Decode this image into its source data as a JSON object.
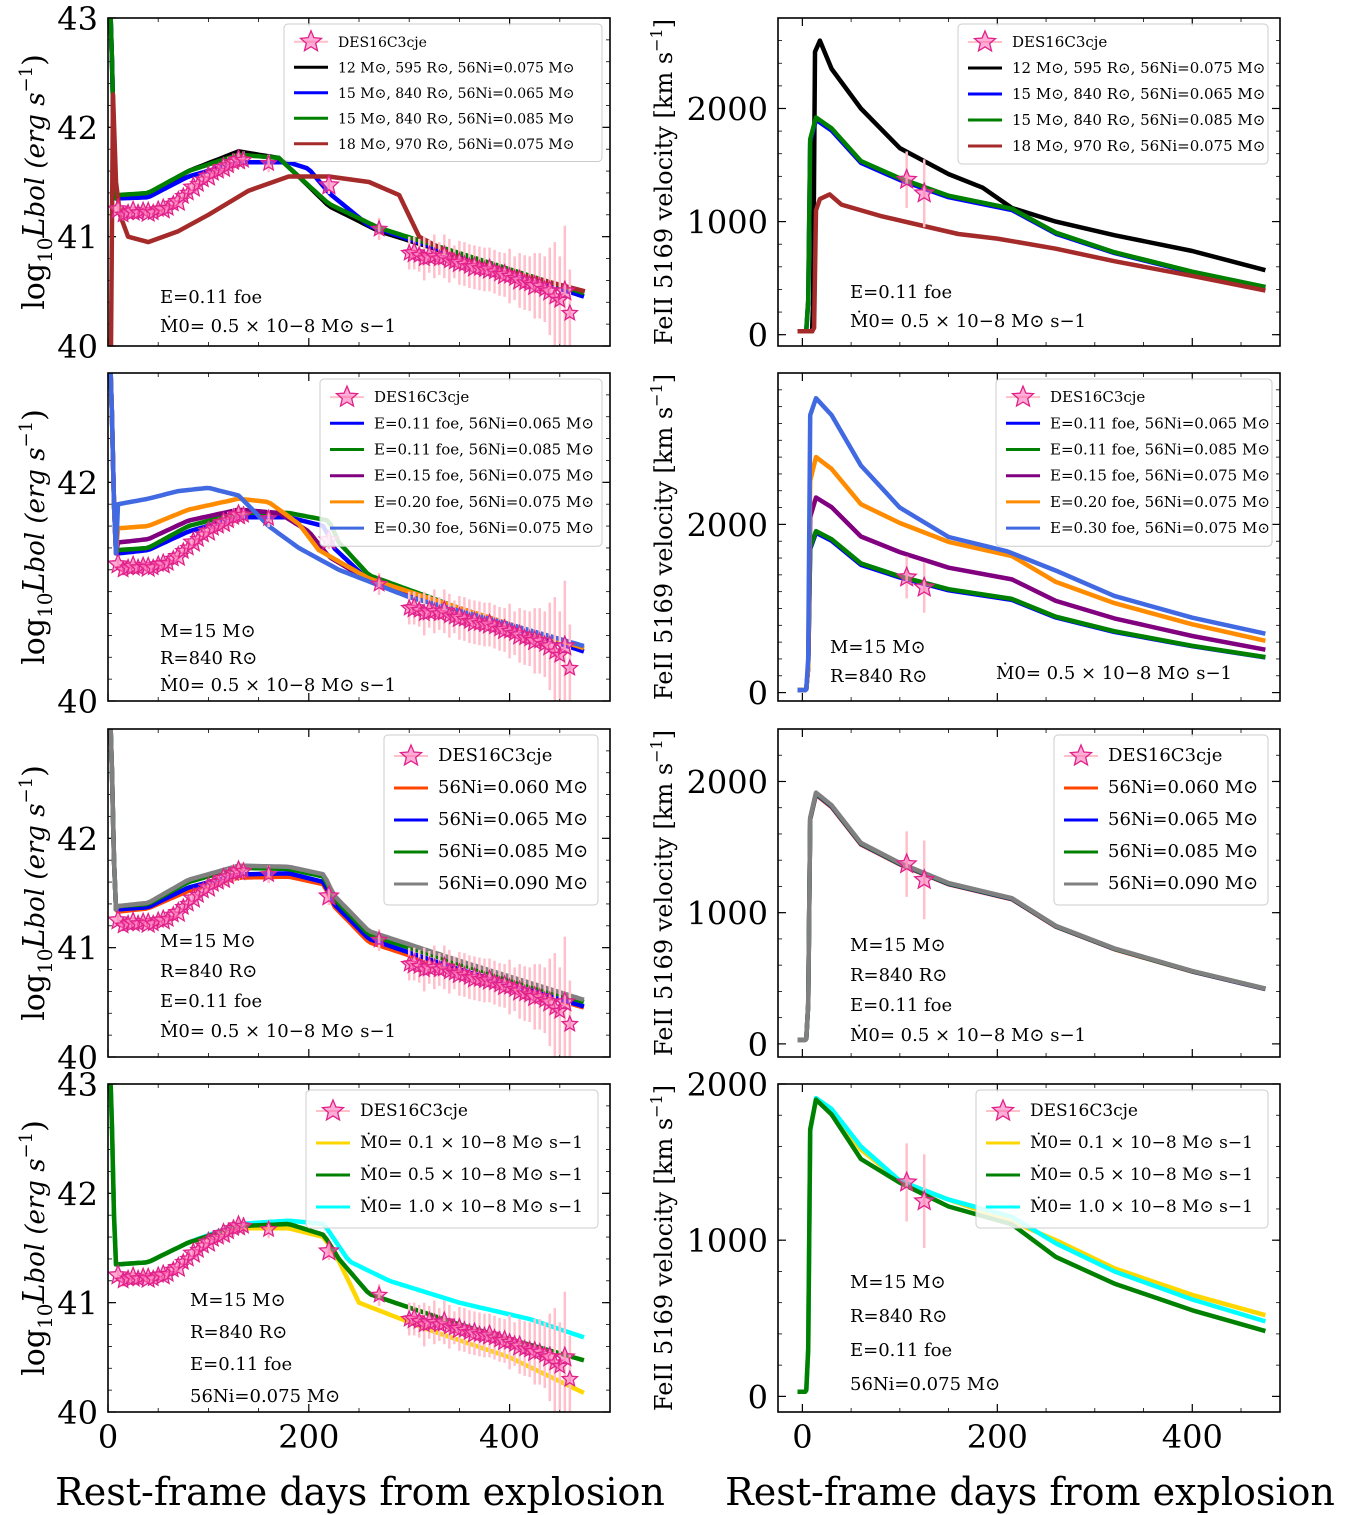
{
  "figure": {
    "xlabel": "Rest-frame days from explosion",
    "left_ylabel": "log10 Lbol (erg s−1)",
    "left_ylabel_main": "log",
    "left_ylabel_sub": "10",
    "left_ylabel_rest": "L",
    "left_ylabel_unit": "bol (erg s",
    "left_ylabel_exp": "−1",
    "left_ylabel_close": ")",
    "right_ylabel": "FeII 5169 velocity [km s−1]",
    "right_ylabel_main": "FeII 5169 velocity [km s",
    "right_ylabel_exp": "−1",
    "right_ylabel_close": "]"
  },
  "colors": {
    "data_star_fill": "#ff69b4",
    "data_star_edge": "#e0218a",
    "data_err": "#ffc0cb",
    "black": "#000000",
    "blue": "#0000ff",
    "green": "#008000",
    "brown": "#a52a2a",
    "purple": "#800080",
    "orange": "#ff8c00",
    "royalblue": "#4169e1",
    "orangered": "#ff4500",
    "gray": "#808080",
    "gold": "#ffd700",
    "cyan": "#00ffff"
  },
  "chart_data": [
    {
      "id": "r1-lum",
      "type": "line",
      "xlim": [
        0,
        500
      ],
      "ylim": [
        40,
        43
      ],
      "yticks": [
        "40",
        "41",
        "42",
        "43"
      ],
      "xticks": [],
      "annotations": [
        "E=0.11 foe",
        "Ṁ0= 0.5 × 10−8 M⊙ s−1"
      ],
      "legend": [
        "DES16C3cje",
        "12 M⊙, 595 R⊙, 56Ni=0.075 M⊙",
        "15 M⊙, 840 R⊙, 56Ni=0.065 M⊙",
        "15 M⊙, 840 R⊙, 56Ni=0.085 M⊙",
        "18 M⊙, 970 R⊙, 56Ni=0.075 M⊙"
      ]
    },
    {
      "id": "r1-vel",
      "type": "line",
      "xlim": [
        -25,
        490
      ],
      "ylim": [
        -100,
        2800
      ],
      "yticks": [
        "0",
        "1000",
        "2000"
      ],
      "xticks": [],
      "annotations": [
        "E=0.11 foe",
        "Ṁ0= 0.5 × 10−8 M⊙ s−1"
      ],
      "legend": [
        "DES16C3cje",
        "12 M⊙, 595 R⊙, 56Ni=0.075 M⊙",
        "15 M⊙, 840 R⊙, 56Ni=0.065 M⊙",
        "15 M⊙, 840 R⊙, 56Ni=0.085 M⊙",
        "18 M⊙, 970 R⊙, 56Ni=0.075 M⊙"
      ]
    },
    {
      "id": "r2-lum",
      "type": "line",
      "xlim": [
        0,
        500
      ],
      "ylim": [
        40,
        43
      ],
      "yticks": [
        "40",
        "42"
      ],
      "xticks": [],
      "annotations": [
        "M=15 M⊙",
        "R=840 R⊙",
        "Ṁ0= 0.5 × 10−8 M⊙ s−1"
      ],
      "legend": [
        "DES16C3cje",
        "E=0.11 foe, 56Ni=0.065 M⊙",
        "E=0.11 foe, 56Ni=0.085 M⊙",
        "E=0.15 foe, 56Ni=0.075 M⊙",
        "E=0.20 foe, 56Ni=0.075 M⊙",
        "E=0.30 foe, 56Ni=0.075 M⊙"
      ]
    },
    {
      "id": "r2-vel",
      "type": "line",
      "xlim": [
        -25,
        490
      ],
      "ylim": [
        -100,
        3800
      ],
      "yticks": [
        "0",
        "2000"
      ],
      "xticks": [],
      "annotations": [
        "M=15 M⊙",
        "R=840 R⊙",
        "Ṁ0= 0.5 × 10−8 M⊙ s−1"
      ],
      "legend": [
        "DES16C3cje",
        "E=0.11 foe, 56Ni=0.065 M⊙",
        "E=0.11 foe, 56Ni=0.085 M⊙",
        "E=0.15 foe, 56Ni=0.075 M⊙",
        "E=0.20 foe, 56Ni=0.075 M⊙",
        "E=0.30 foe, 56Ni=0.075 M⊙"
      ]
    },
    {
      "id": "r3-lum",
      "type": "line",
      "xlim": [
        0,
        500
      ],
      "ylim": [
        40,
        43
      ],
      "yticks": [
        "40",
        "41",
        "42"
      ],
      "xticks": [],
      "annotations": [
        "M=15 M⊙",
        "R=840 R⊙",
        "E=0.11 foe",
        "Ṁ0= 0.5 × 10−8 M⊙ s−1"
      ],
      "legend": [
        "DES16C3cje",
        "56Ni=0.060 M⊙",
        "56Ni=0.065 M⊙",
        "56Ni=0.085 M⊙",
        "56Ni=0.090 M⊙"
      ]
    },
    {
      "id": "r3-vel",
      "type": "line",
      "xlim": [
        -25,
        490
      ],
      "ylim": [
        -100,
        2400
      ],
      "yticks": [
        "0",
        "1000",
        "2000"
      ],
      "xticks": [],
      "annotations": [
        "M=15 M⊙",
        "R=840 R⊙",
        "E=0.11 foe",
        "Ṁ0= 0.5 × 10−8 M⊙ s−1"
      ],
      "legend": [
        "DES16C3cje",
        "56Ni=0.060 M⊙",
        "56Ni=0.065 M⊙",
        "56Ni=0.085 M⊙",
        "56Ni=0.090 M⊙"
      ]
    },
    {
      "id": "r4-lum",
      "type": "line",
      "xlim": [
        0,
        500
      ],
      "ylim": [
        40,
        43
      ],
      "yticks": [
        "40",
        "41",
        "42",
        "43"
      ],
      "xticks": [
        "0",
        "200",
        "400"
      ],
      "annotations": [
        "M=15 M⊙",
        "R=840 R⊙",
        "E=0.11 foe",
        "56Ni=0.075 M⊙"
      ],
      "legend": [
        "DES16C3cje",
        "Ṁ0= 0.1 × 10−8 M⊙ s−1",
        "Ṁ0= 0.5 × 10−8 M⊙ s−1",
        "Ṁ0= 1.0 × 10−8 M⊙ s−1"
      ]
    },
    {
      "id": "r4-vel",
      "type": "line",
      "xlim": [
        -25,
        490
      ],
      "ylim": [
        -100,
        2000
      ],
      "yticks": [
        "0",
        "1000",
        "2000"
      ],
      "xticks": [
        "0",
        "200",
        "400"
      ],
      "annotations": [
        "M=15 M⊙",
        "R=840 R⊙",
        "E=0.11 foe",
        "56Ni=0.075 M⊙"
      ],
      "legend": [
        "DES16C3cje",
        "Ṁ0= 0.1 × 10−8 M⊙ s−1",
        "Ṁ0= 0.5 × 10−8 M⊙ s−1",
        "Ṁ0= 1.0 × 10−8 M⊙ s−1"
      ]
    }
  ],
  "observations": {
    "lum": {
      "x": [
        10,
        15,
        20,
        25,
        30,
        35,
        40,
        45,
        50,
        55,
        60,
        65,
        70,
        75,
        80,
        85,
        90,
        95,
        100,
        105,
        110,
        115,
        120,
        125,
        130,
        135,
        160,
        220,
        270,
        300,
        305,
        310,
        315,
        320,
        325,
        330,
        335,
        340,
        345,
        350,
        355,
        360,
        365,
        370,
        375,
        380,
        385,
        390,
        395,
        400,
        405,
        410,
        415,
        420,
        425,
        430,
        435,
        440,
        445,
        450,
        455,
        460
      ],
      "y": [
        41.25,
        41.2,
        41.22,
        41.23,
        41.22,
        41.24,
        41.22,
        41.22,
        41.25,
        41.25,
        41.26,
        41.3,
        41.32,
        41.37,
        41.4,
        41.45,
        41.48,
        41.52,
        41.55,
        41.58,
        41.6,
        41.63,
        41.65,
        41.68,
        41.7,
        41.7,
        41.67,
        41.47,
        41.07,
        40.85,
        40.85,
        40.83,
        40.8,
        40.82,
        40.82,
        40.8,
        40.82,
        40.78,
        40.77,
        40.76,
        40.75,
        40.73,
        40.72,
        40.71,
        40.7,
        40.7,
        40.68,
        40.66,
        40.65,
        40.64,
        40.62,
        40.6,
        40.58,
        40.57,
        40.55,
        40.55,
        40.52,
        40.5,
        40.45,
        40.42,
        40.5,
        40.3
      ],
      "err": [
        0.05,
        0.05,
        0.05,
        0.05,
        0.05,
        0.05,
        0.05,
        0.05,
        0.05,
        0.05,
        0.05,
        0.05,
        0.05,
        0.05,
        0.05,
        0.05,
        0.05,
        0.05,
        0.05,
        0.05,
        0.05,
        0.08,
        0.08,
        0.08,
        0.08,
        0.08,
        0.08,
        0.08,
        0.1,
        0.15,
        0.15,
        0.15,
        0.2,
        0.15,
        0.2,
        0.15,
        0.2,
        0.2,
        0.15,
        0.2,
        0.2,
        0.2,
        0.2,
        0.2,
        0.2,
        0.2,
        0.2,
        0.2,
        0.2,
        0.25,
        0.2,
        0.25,
        0.25,
        0.25,
        0.3,
        0.3,
        0.3,
        0.4,
        0.5,
        0.4,
        0.6,
        0.4
      ]
    },
    "vel": {
      "x": [
        107,
        125
      ],
      "y": [
        1370,
        1250
      ],
      "err": [
        250,
        300
      ]
    }
  }
}
